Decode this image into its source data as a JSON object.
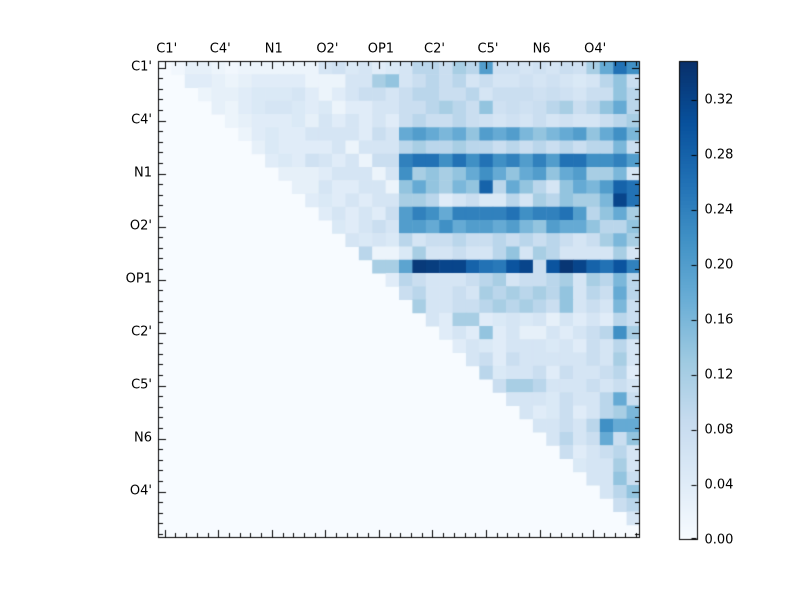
{
  "chart_data": {
    "type": "heatmap",
    "title": "",
    "xlabel": "",
    "ylabel": "",
    "n": 36,
    "shape": "upper-triangular",
    "tick_labels": [
      "C1'",
      "C4'",
      "N1",
      "O2'",
      "OP1",
      "C2'",
      "C5'",
      "N6",
      "O4'"
    ],
    "tick_label_positions": [
      0,
      4,
      8,
      12,
      16,
      20,
      24,
      28,
      32
    ],
    "vmin": 0.0,
    "vmax": 0.348,
    "colormap": "Blues",
    "colormap_stops": [
      "#f7fbff",
      "#deebf7",
      "#c6dbef",
      "#9ecae1",
      "#6baed6",
      "#4292c6",
      "#2171b5",
      "#08519c",
      "#08306b"
    ],
    "colors": {
      "background": "#ffffff",
      "axis": "#000000",
      "text": "#000000"
    },
    "grid": false,
    "legend": "none",
    "colorbar": {
      "position": "right",
      "tick_labels": [
        "0.00",
        "0.04",
        "0.08",
        "0.12",
        "0.16",
        "0.20",
        "0.24",
        "0.28",
        "0.32"
      ],
      "tick_values": [
        0.0,
        0.04,
        0.08,
        0.12,
        0.16,
        0.2,
        0.24,
        0.28,
        0.32
      ]
    },
    "matrix": [
      [
        0,
        0.01,
        0.03,
        0.03,
        0.02,
        0.01,
        0.02,
        0.02,
        0.02,
        0.02,
        0.02,
        0.02,
        0.06,
        0.07,
        0.05,
        0.06,
        0.04,
        0.05,
        0.06,
        0.1,
        0.1,
        0.08,
        0.12,
        0.1,
        0.2,
        0.07,
        0.07,
        0.06,
        0.07,
        0.06,
        0.08,
        0.07,
        0.12,
        0.18,
        0.26,
        0.22
      ],
      [
        0,
        0,
        0.04,
        0.04,
        0.03,
        0.02,
        0.03,
        0.04,
        0.04,
        0.04,
        0.04,
        0.02,
        0.02,
        0.02,
        0.06,
        0.06,
        0.12,
        0.14,
        0.06,
        0.08,
        0.1,
        0.08,
        0.1,
        0.06,
        0.08,
        0.06,
        0.06,
        0.07,
        0.06,
        0.07,
        0.06,
        0.05,
        0.06,
        0.1,
        0.14,
        0.08
      ],
      [
        0,
        0,
        0,
        0.02,
        0.03,
        0.03,
        0.04,
        0.05,
        0.05,
        0.05,
        0.06,
        0.04,
        0.02,
        0.04,
        0.06,
        0.08,
        0.08,
        0.06,
        0.08,
        0.1,
        0.1,
        0.08,
        0.08,
        0.1,
        0.06,
        0.08,
        0.08,
        0.08,
        0.07,
        0.08,
        0.07,
        0.06,
        0.08,
        0.08,
        0.14,
        0.1
      ],
      [
        0,
        0,
        0,
        0,
        0.03,
        0.02,
        0.04,
        0.05,
        0.06,
        0.06,
        0.05,
        0.04,
        0.05,
        0.02,
        0.04,
        0.04,
        0.06,
        0.06,
        0.08,
        0.08,
        0.1,
        0.12,
        0.1,
        0.08,
        0.14,
        0.07,
        0.08,
        0.07,
        0.08,
        0.1,
        0.12,
        0.08,
        0.1,
        0.14,
        0.18,
        0.1
      ],
      [
        0,
        0,
        0,
        0,
        0,
        0.02,
        0.03,
        0.04,
        0.04,
        0.04,
        0.05,
        0.03,
        0.06,
        0.04,
        0.06,
        0.04,
        0.06,
        0.04,
        0.08,
        0.1,
        0.08,
        0.08,
        0.1,
        0.08,
        0.07,
        0.06,
        0.07,
        0.06,
        0.08,
        0.06,
        0.07,
        0.06,
        0.06,
        0.08,
        0.1,
        0.12
      ],
      [
        0,
        0,
        0,
        0,
        0,
        0,
        0.02,
        0.04,
        0.05,
        0.04,
        0.04,
        0.06,
        0.06,
        0.06,
        0.06,
        0.04,
        0.08,
        0.06,
        0.18,
        0.2,
        0.18,
        0.16,
        0.18,
        0.14,
        0.2,
        0.18,
        0.2,
        0.16,
        0.14,
        0.16,
        0.18,
        0.2,
        0.14,
        0.18,
        0.22,
        0.16
      ],
      [
        0,
        0,
        0,
        0,
        0,
        0,
        0,
        0.03,
        0.05,
        0.04,
        0.04,
        0.04,
        0.04,
        0.06,
        0.02,
        0.06,
        0.06,
        0.06,
        0.1,
        0.12,
        0.1,
        0.1,
        0.12,
        0.1,
        0.1,
        0.08,
        0.1,
        0.08,
        0.1,
        0.08,
        0.1,
        0.08,
        0.1,
        0.1,
        0.16,
        0.08
      ],
      [
        0,
        0,
        0,
        0,
        0,
        0,
        0,
        0,
        0.04,
        0.05,
        0.04,
        0.07,
        0.06,
        0.04,
        0.06,
        0.02,
        0.08,
        0.08,
        0.24,
        0.26,
        0.26,
        0.22,
        0.26,
        0.22,
        0.26,
        0.22,
        0.24,
        0.2,
        0.24,
        0.2,
        0.26,
        0.26,
        0.22,
        0.22,
        0.24,
        0.2
      ],
      [
        0,
        0,
        0,
        0,
        0,
        0,
        0,
        0,
        0,
        0.03,
        0.03,
        0.03,
        0.04,
        0.06,
        0.06,
        0.06,
        0.02,
        0.06,
        0.22,
        0.12,
        0.14,
        0.12,
        0.14,
        0.18,
        0.22,
        0.18,
        0.14,
        0.18,
        0.2,
        0.14,
        0.18,
        0.2,
        0.12,
        0.12,
        0.16,
        0.06
      ],
      [
        0,
        0,
        0,
        0,
        0,
        0,
        0,
        0,
        0,
        0,
        0.03,
        0.03,
        0.06,
        0.04,
        0.04,
        0.06,
        0.06,
        0.02,
        0.14,
        0.18,
        0.14,
        0.12,
        0.16,
        0.14,
        0.28,
        0.1,
        0.18,
        0.14,
        0.1,
        0.06,
        0.14,
        0.18,
        0.16,
        0.2,
        0.28,
        0.26
      ],
      [
        0,
        0,
        0,
        0,
        0,
        0,
        0,
        0,
        0,
        0,
        0,
        0.04,
        0.05,
        0.04,
        0.06,
        0.04,
        0.06,
        0.06,
        0.12,
        0.12,
        0.1,
        0.04,
        0.06,
        0.08,
        0.05,
        0.05,
        0.1,
        0.06,
        0.12,
        0.1,
        0.14,
        0.12,
        0.12,
        0.16,
        0.32,
        0.26
      ],
      [
        0,
        0,
        0,
        0,
        0,
        0,
        0,
        0,
        0,
        0,
        0,
        0,
        0.04,
        0.06,
        0.04,
        0.06,
        0.04,
        0.08,
        0.2,
        0.24,
        0.22,
        0.18,
        0.24,
        0.24,
        0.24,
        0.24,
        0.26,
        0.22,
        0.24,
        0.24,
        0.26,
        0.2,
        0.1,
        0.14,
        0.18,
        0.12
      ],
      [
        0,
        0,
        0,
        0,
        0,
        0,
        0,
        0,
        0,
        0,
        0,
        0,
        0,
        0.05,
        0.04,
        0.06,
        0.08,
        0.06,
        0.2,
        0.2,
        0.18,
        0.22,
        0.18,
        0.2,
        0.2,
        0.18,
        0.2,
        0.16,
        0.14,
        0.2,
        0.18,
        0.18,
        0.14,
        0.1,
        0.1,
        0.14
      ],
      [
        0,
        0,
        0,
        0,
        0,
        0,
        0,
        0,
        0,
        0,
        0,
        0,
        0,
        0,
        0.06,
        0.05,
        0.06,
        0.05,
        0.1,
        0.06,
        0.08,
        0.08,
        0.1,
        0.08,
        0.08,
        0.1,
        0.08,
        0.1,
        0.08,
        0.1,
        0.08,
        0.06,
        0.08,
        0.12,
        0.16,
        0.12
      ],
      [
        0,
        0,
        0,
        0,
        0,
        0,
        0,
        0,
        0,
        0,
        0,
        0,
        0,
        0,
        0,
        0.1,
        0.02,
        0.02,
        0.05,
        0.12,
        0.06,
        0.06,
        0.08,
        0.06,
        0.06,
        0.1,
        0.14,
        0.06,
        0.12,
        0.1,
        0.06,
        0.06,
        0.06,
        0.06,
        0.12,
        0.06
      ],
      [
        0,
        0,
        0,
        0,
        0,
        0,
        0,
        0,
        0,
        0,
        0,
        0,
        0,
        0,
        0,
        0,
        0.12,
        0.12,
        0.19,
        0.335,
        0.33,
        0.32,
        0.32,
        0.28,
        0.26,
        0.25,
        0.3,
        0.32,
        0.08,
        0.3,
        0.34,
        0.32,
        0.28,
        0.26,
        0.3,
        0.24
      ],
      [
        0,
        0,
        0,
        0,
        0,
        0,
        0,
        0,
        0,
        0,
        0,
        0,
        0,
        0,
        0,
        0,
        0,
        0.04,
        0.1,
        0.08,
        0.06,
        0.06,
        0.06,
        0.08,
        0.1,
        0.12,
        0.06,
        0.08,
        0.08,
        0.1,
        0.12,
        0.06,
        0.12,
        0.1,
        0.16,
        0.1
      ],
      [
        0,
        0,
        0,
        0,
        0,
        0,
        0,
        0,
        0,
        0,
        0,
        0,
        0,
        0,
        0,
        0,
        0,
        0,
        0.08,
        0.1,
        0.06,
        0.06,
        0.08,
        0.06,
        0.12,
        0.1,
        0.12,
        0.1,
        0.12,
        0.1,
        0.14,
        0.06,
        0.1,
        0.08,
        0.18,
        0.1
      ],
      [
        0,
        0,
        0,
        0,
        0,
        0,
        0,
        0,
        0,
        0,
        0,
        0,
        0,
        0,
        0,
        0,
        0,
        0,
        0,
        0.12,
        0.06,
        0.06,
        0.08,
        0.08,
        0.1,
        0.12,
        0.1,
        0.12,
        0.1,
        0.08,
        0.14,
        0.06,
        0.08,
        0.06,
        0.16,
        0.08
      ],
      [
        0,
        0,
        0,
        0,
        0,
        0,
        0,
        0,
        0,
        0,
        0,
        0,
        0,
        0,
        0,
        0,
        0,
        0,
        0,
        0,
        0.06,
        0.04,
        0.12,
        0.12,
        0.04,
        0.05,
        0.06,
        0.05,
        0.06,
        0.03,
        0.06,
        0.04,
        0.06,
        0.04,
        0.1,
        0.08
      ],
      [
        0,
        0,
        0,
        0,
        0,
        0,
        0,
        0,
        0,
        0,
        0,
        0,
        0,
        0,
        0,
        0,
        0,
        0,
        0,
        0,
        0,
        0.04,
        0.06,
        0.04,
        0.14,
        0.04,
        0.06,
        0.03,
        0.03,
        0.06,
        0.04,
        0.06,
        0.08,
        0.1,
        0.22,
        0.12
      ],
      [
        0,
        0,
        0,
        0,
        0,
        0,
        0,
        0,
        0,
        0,
        0,
        0,
        0,
        0,
        0,
        0,
        0,
        0,
        0,
        0,
        0,
        0,
        0.04,
        0.06,
        0.05,
        0.04,
        0.06,
        0.06,
        0.06,
        0.05,
        0.06,
        0.04,
        0.08,
        0.06,
        0.1,
        0.06
      ],
      [
        0,
        0,
        0,
        0,
        0,
        0,
        0,
        0,
        0,
        0,
        0,
        0,
        0,
        0,
        0,
        0,
        0,
        0,
        0,
        0,
        0,
        0,
        0,
        0.06,
        0.08,
        0.04,
        0.08,
        0.06,
        0.06,
        0.06,
        0.06,
        0.06,
        0.08,
        0.06,
        0.12,
        0.06
      ],
      [
        0,
        0,
        0,
        0,
        0,
        0,
        0,
        0,
        0,
        0,
        0,
        0,
        0,
        0,
        0,
        0,
        0,
        0,
        0,
        0,
        0,
        0,
        0,
        0,
        0.1,
        0.05,
        0.06,
        0.06,
        0.08,
        0.04,
        0.08,
        0.06,
        0.06,
        0.08,
        0.1,
        0.04
      ],
      [
        0,
        0,
        0,
        0,
        0,
        0,
        0,
        0,
        0,
        0,
        0,
        0,
        0,
        0,
        0,
        0,
        0,
        0,
        0,
        0,
        0,
        0,
        0,
        0,
        0,
        0.08,
        0.12,
        0.12,
        0.1,
        0.06,
        0.06,
        0.06,
        0.08,
        0.06,
        0.08,
        0.06
      ],
      [
        0,
        0,
        0,
        0,
        0,
        0,
        0,
        0,
        0,
        0,
        0,
        0,
        0,
        0,
        0,
        0,
        0,
        0,
        0,
        0,
        0,
        0,
        0,
        0,
        0,
        0,
        0.06,
        0.06,
        0.06,
        0.05,
        0.08,
        0.06,
        0.06,
        0.1,
        0.18,
        0.08
      ],
      [
        0,
        0,
        0,
        0,
        0,
        0,
        0,
        0,
        0,
        0,
        0,
        0,
        0,
        0,
        0,
        0,
        0,
        0,
        0,
        0,
        0,
        0,
        0,
        0,
        0,
        0,
        0,
        0.06,
        0.04,
        0.05,
        0.08,
        0.04,
        0.06,
        0.1,
        0.12,
        0.16
      ],
      [
        0,
        0,
        0,
        0,
        0,
        0,
        0,
        0,
        0,
        0,
        0,
        0,
        0,
        0,
        0,
        0,
        0,
        0,
        0,
        0,
        0,
        0,
        0,
        0,
        0,
        0,
        0,
        0,
        0.06,
        0.06,
        0.08,
        0.06,
        0.1,
        0.22,
        0.18,
        0.18
      ],
      [
        0,
        0,
        0,
        0,
        0,
        0,
        0,
        0,
        0,
        0,
        0,
        0,
        0,
        0,
        0,
        0,
        0,
        0,
        0,
        0,
        0,
        0,
        0,
        0,
        0,
        0,
        0,
        0,
        0,
        0.06,
        0.1,
        0.06,
        0.08,
        0.18,
        0.08,
        0.14
      ],
      [
        0,
        0,
        0,
        0,
        0,
        0,
        0,
        0,
        0,
        0,
        0,
        0,
        0,
        0,
        0,
        0,
        0,
        0,
        0,
        0,
        0,
        0,
        0,
        0,
        0,
        0,
        0,
        0,
        0,
        0,
        0.08,
        0.04,
        0.06,
        0.08,
        0.1,
        0.06
      ],
      [
        0,
        0,
        0,
        0,
        0,
        0,
        0,
        0,
        0,
        0,
        0,
        0,
        0,
        0,
        0,
        0,
        0,
        0,
        0,
        0,
        0,
        0,
        0,
        0,
        0,
        0,
        0,
        0,
        0,
        0,
        0,
        0.05,
        0.06,
        0.06,
        0.12,
        0.06
      ],
      [
        0,
        0,
        0,
        0,
        0,
        0,
        0,
        0,
        0,
        0,
        0,
        0,
        0,
        0,
        0,
        0,
        0,
        0,
        0,
        0,
        0,
        0,
        0,
        0,
        0,
        0,
        0,
        0,
        0,
        0,
        0,
        0,
        0.06,
        0.06,
        0.14,
        0.08
      ],
      [
        0,
        0,
        0,
        0,
        0,
        0,
        0,
        0,
        0,
        0,
        0,
        0,
        0,
        0,
        0,
        0,
        0,
        0,
        0,
        0,
        0,
        0,
        0,
        0,
        0,
        0,
        0,
        0,
        0,
        0,
        0,
        0,
        0,
        0.06,
        0.1,
        0.14
      ],
      [
        0,
        0,
        0,
        0,
        0,
        0,
        0,
        0,
        0,
        0,
        0,
        0,
        0,
        0,
        0,
        0,
        0,
        0,
        0,
        0,
        0,
        0,
        0,
        0,
        0,
        0,
        0,
        0,
        0,
        0,
        0,
        0,
        0,
        0,
        0.08,
        0.1
      ],
      [
        0,
        0,
        0,
        0,
        0,
        0,
        0,
        0,
        0,
        0,
        0,
        0,
        0,
        0,
        0,
        0,
        0,
        0,
        0,
        0,
        0,
        0,
        0,
        0,
        0,
        0,
        0,
        0,
        0,
        0,
        0,
        0,
        0,
        0,
        0,
        0.06
      ],
      [
        0,
        0,
        0,
        0,
        0,
        0,
        0,
        0,
        0,
        0,
        0,
        0,
        0,
        0,
        0,
        0,
        0,
        0,
        0,
        0,
        0,
        0,
        0,
        0,
        0,
        0,
        0,
        0,
        0,
        0,
        0,
        0,
        0,
        0,
        0,
        0
      ]
    ]
  }
}
